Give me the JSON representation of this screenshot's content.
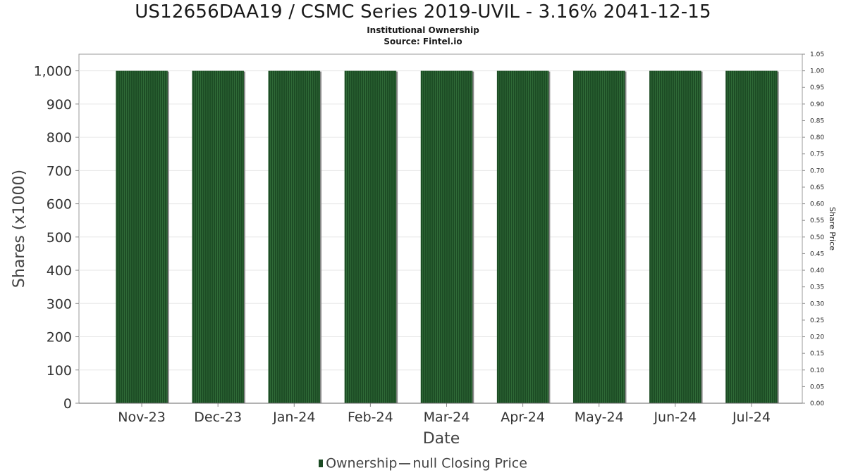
{
  "chart_data": {
    "type": "bar",
    "title": "US12656DAA19 / CSMC Series 2019-UVIL - 3.16% 2041-12-15",
    "subtitle_lines": [
      "Institutional Ownership",
      "Source: Fintel.io"
    ],
    "xlabel": "Date",
    "ylabel": "Shares (x1000)",
    "y2label": "Share Price",
    "categories": [
      "Nov-23",
      "Dec-23",
      "Jan-24",
      "Feb-24",
      "Mar-24",
      "Apr-24",
      "May-24",
      "Jun-24",
      "Jul-24"
    ],
    "series": [
      {
        "name": "Ownership",
        "values": [
          1000,
          1000,
          1000,
          1000,
          1000,
          1000,
          1000,
          1000,
          1000
        ],
        "color": "#1a4a22"
      }
    ],
    "ylim": [
      0,
      1050
    ],
    "yticks": [
      "0",
      "100",
      "200",
      "300",
      "400",
      "500",
      "600",
      "700",
      "800",
      "900",
      "1,000"
    ],
    "y2lim": [
      0,
      1.05
    ],
    "y2ticks": [
      "0.00",
      "0.05",
      "0.10",
      "0.15",
      "0.20",
      "0.25",
      "0.30",
      "0.35",
      "0.40",
      "0.45",
      "0.50",
      "0.55",
      "0.60",
      "0.65",
      "0.70",
      "0.75",
      "0.80",
      "0.85",
      "0.90",
      "0.95",
      "1.00",
      "1.05"
    ],
    "grid": true,
    "legend": {
      "position": "bottom",
      "ownership_label": "Ownership",
      "price_label": "null Closing Price"
    }
  }
}
